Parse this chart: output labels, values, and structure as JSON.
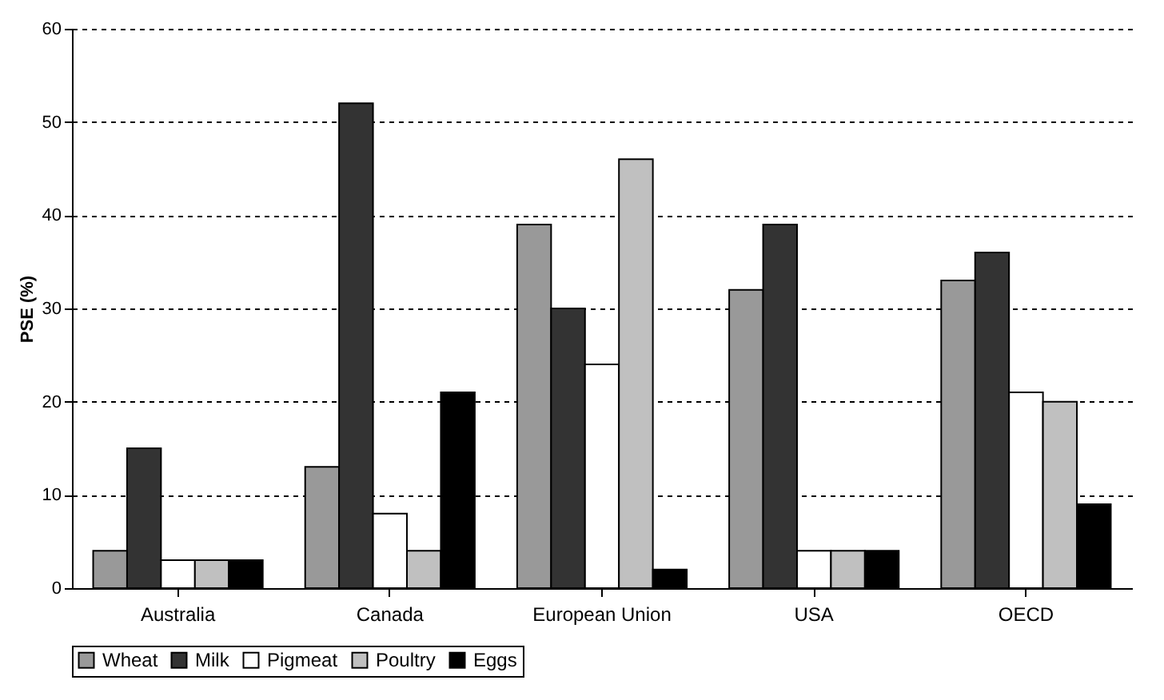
{
  "chart_data": {
    "type": "bar",
    "ylabel": "PSE (%)",
    "categories": [
      "Australia",
      "Canada",
      "European Union",
      "USA",
      "OECD"
    ],
    "series": [
      {
        "name": "Wheat",
        "color": "#999999",
        "values": [
          4,
          13,
          39,
          32,
          33
        ]
      },
      {
        "name": "Milk",
        "color": "#333333",
        "values": [
          15,
          52,
          30,
          39,
          36
        ]
      },
      {
        "name": "Pigmeat",
        "color": "#ffffff",
        "values": [
          3,
          8,
          24,
          4,
          21
        ]
      },
      {
        "name": "Poultry",
        "color": "#c0c0c0",
        "values": [
          3,
          4,
          46,
          4,
          20
        ]
      },
      {
        "name": "Eggs",
        "color": "#000000",
        "values": [
          3,
          21,
          2,
          4,
          9
        ]
      }
    ],
    "ylim": [
      0,
      60
    ],
    "yticks": [
      0,
      10,
      20,
      30,
      40,
      50,
      60
    ],
    "grid": "y",
    "legend": "bottom"
  }
}
